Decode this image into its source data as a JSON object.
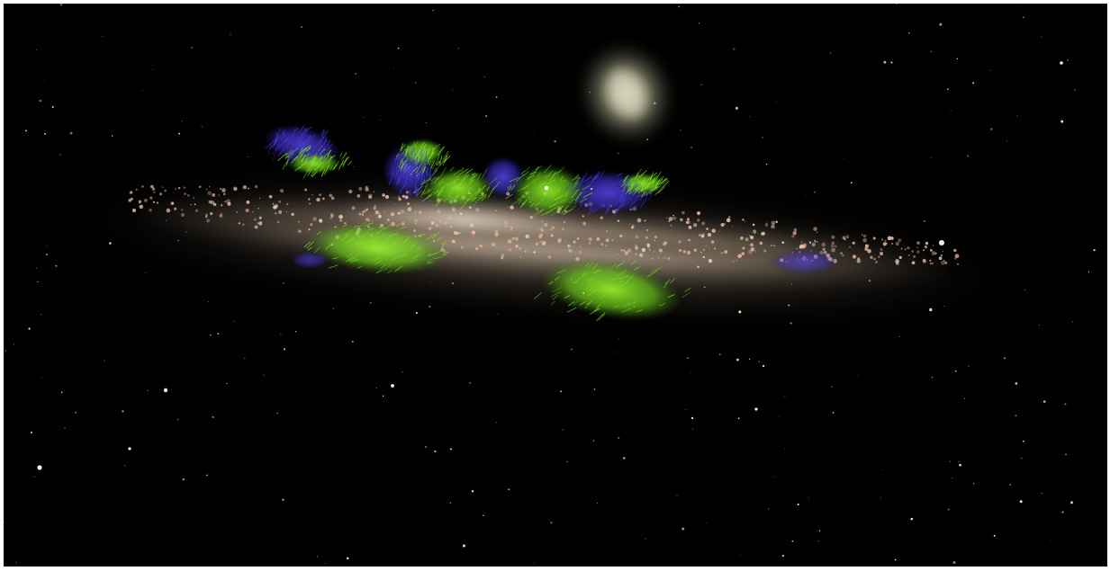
{
  "image": {
    "subject": "edge-on-spiral-galaxy-with-magnetic-field-overlay",
    "colors": {
      "background": "#000000",
      "frame": "#ffffff",
      "galaxy_disk": "#c9b39a",
      "galaxy_core": "#e2d2bd",
      "star_clusters": "#f2b9a6",
      "field_green": "#7fe11c",
      "field_blue": "#4a3fd6",
      "companion_galaxy": "#cfd0b0",
      "stars": "#f4efe6"
    },
    "star_count": 260,
    "cluster_count": 520
  }
}
